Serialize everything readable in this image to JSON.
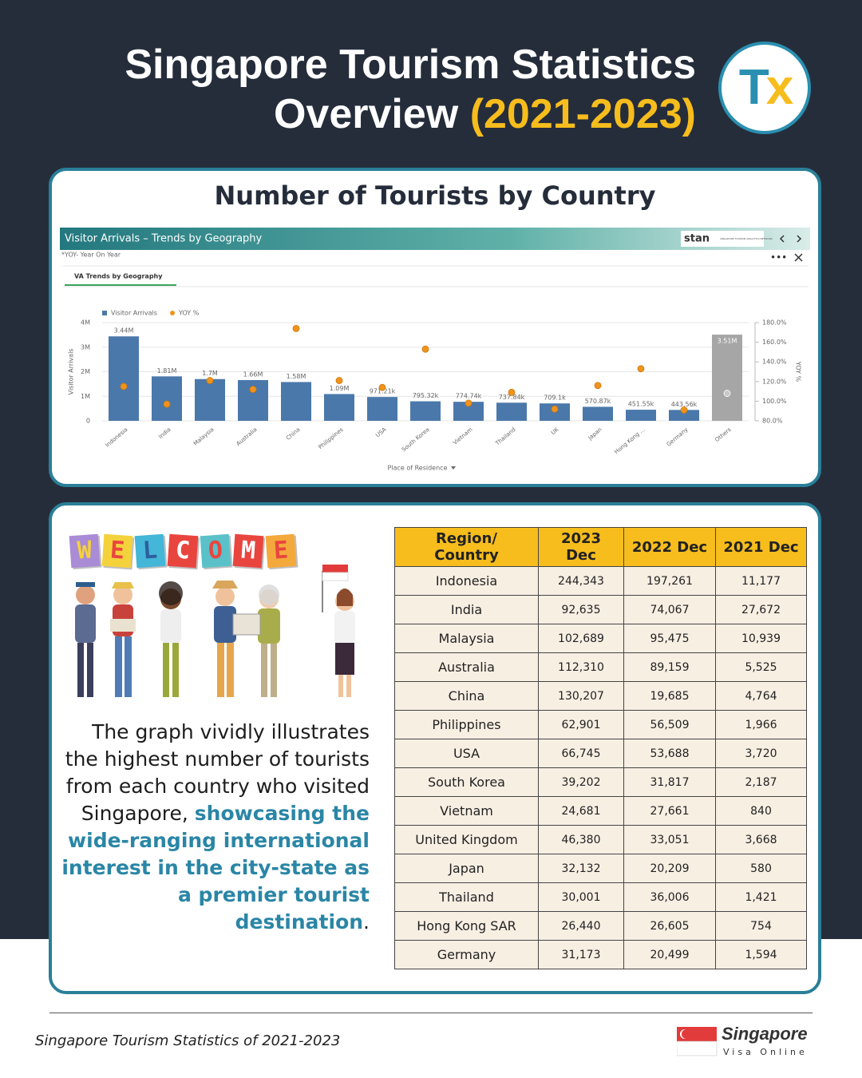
{
  "header": {
    "title_line1": "Singapore Tourism Statistics",
    "title_line2": "Overview",
    "title_years": "(2021-2023)",
    "logo_left": "T",
    "logo_right": "x"
  },
  "chart_section": {
    "heading": "Number of Tourists by Country",
    "dashboard_title": "Visitor Arrivals – Trends by Geography",
    "dashboard_note": "*YOY- Year On Year",
    "tab": "VA Trends by Geography",
    "brand": "stan",
    "brand_tagline": "SINGAPORE TOURISM ANALYTICS NETWORK"
  },
  "chart_data": {
    "type": "bar",
    "x_label": "Place of Residence",
    "y_label": "Visitor Arrivals",
    "y2_label": "YOY %",
    "categories": [
      "Indonesia",
      "India",
      "Malaysia",
      "Australia",
      "China",
      "Philippines",
      "USA",
      "South Korea",
      "Vietnam",
      "Thailand",
      "UK",
      "Japan",
      "Hong Kong ...",
      "Germany",
      "Others"
    ],
    "series": [
      {
        "name": "Visitor Arrivals",
        "type": "bar",
        "color": "#4a78ab",
        "colors": [
          "#4a78ab",
          "#4a78ab",
          "#4a78ab",
          "#4a78ab",
          "#4a78ab",
          "#4a78ab",
          "#4a78ab",
          "#4a78ab",
          "#4a78ab",
          "#4a78ab",
          "#4a78ab",
          "#4a78ab",
          "#4a78ab",
          "#4a78ab",
          "#a6a6a6"
        ],
        "values": [
          3440000,
          1810000,
          1700000,
          1660000,
          1580000,
          1090000,
          971210,
          795320,
          774740,
          737840,
          709100,
          570870,
          451550,
          443560,
          3510000
        ],
        "value_labels": [
          "3.44M",
          "1.81M",
          "1.7M",
          "1.66M",
          "1.58M",
          "1.09M",
          "971.21k",
          "795.32k",
          "774.74k",
          "737.84k",
          "709.1k",
          "570.87k",
          "451.55k",
          "443.56k",
          "3.51M"
        ]
      },
      {
        "name": "YOY %",
        "type": "scatter",
        "axis": "y2",
        "color": "#f0931d",
        "colors": [
          "#f0931d",
          "#f0931d",
          "#f0931d",
          "#f0931d",
          "#f0931d",
          "#f0931d",
          "#f0931d",
          "#f0931d",
          "#f0931d",
          "#f0931d",
          "#f0931d",
          "#f0931d",
          "#f0931d",
          "#f0931d",
          "#c8c8c8"
        ],
        "values": [
          115,
          97,
          121,
          112,
          174,
          121,
          114,
          153,
          98,
          109,
          92,
          116,
          133,
          91,
          108
        ]
      }
    ],
    "ylim": [
      0,
      4000000
    ],
    "yticks": [
      0,
      {
        "value": 1000000,
        "label": "1M"
      },
      {
        "value": 2000000,
        "label": "2M"
      },
      {
        "value": 3000000,
        "label": "3M"
      },
      {
        "value": 4000000,
        "label": "4M"
      }
    ],
    "y2lim": [
      80,
      180
    ],
    "y2ticks": [
      {
        "value": 80,
        "label": "80.0%"
      },
      {
        "value": 100,
        "label": "100.0%"
      },
      {
        "value": 120,
        "label": "120.0%"
      },
      {
        "value": 140,
        "label": "140.0%"
      },
      {
        "value": 160,
        "label": "160.0%"
      },
      {
        "value": 180,
        "label": "180.0%"
      }
    ],
    "grid": true,
    "legend": "top-left"
  },
  "welcome": [
    "W",
    "E",
    "L",
    "C",
    "O",
    "M",
    "E"
  ],
  "description": {
    "text": "The graph vividly illustrates the highest number of tourists from each country who visited Singapore,",
    "highlight": "showcasing the wide-ranging international interest in the city-state as a premier tourist destination",
    "tail": "."
  },
  "table": {
    "header": [
      "Region/ Country",
      "2023 Dec",
      "2022 Dec",
      "2021 Dec"
    ],
    "rows": [
      [
        "Indonesia",
        "244,343",
        "197,261",
        "11,177"
      ],
      [
        "India",
        "92,635",
        "74,067",
        "27,672"
      ],
      [
        "Malaysia",
        "102,689",
        "95,475",
        "10,939"
      ],
      [
        "Australia",
        "112,310",
        "89,159",
        "5,525"
      ],
      [
        "China",
        "130,207",
        "19,685",
        "4,764"
      ],
      [
        "Philippines",
        "62,901",
        "56,509",
        "1,966"
      ],
      [
        "USA",
        "66,745",
        "53,688",
        "3,720"
      ],
      [
        "South Korea",
        "39,202",
        "31,817",
        "2,187"
      ],
      [
        "Vietnam",
        "24,681",
        "27,661",
        "840"
      ],
      [
        "United Kingdom",
        "46,380",
        "33,051",
        "3,668"
      ],
      [
        "Japan",
        "32,132",
        "20,209",
        "580"
      ],
      [
        "Thailand",
        "30,001",
        "36,006",
        "1,421"
      ],
      [
        "Hong Kong SAR",
        "26,440",
        "26,605",
        "754"
      ],
      [
        "Germany",
        "31,173",
        "20,499",
        "1,594"
      ]
    ]
  },
  "footer": {
    "caption": "Singapore Tourism Statistics of 2021-2023",
    "brand_name": "Singapore",
    "brand_sub": "Visa Online"
  }
}
